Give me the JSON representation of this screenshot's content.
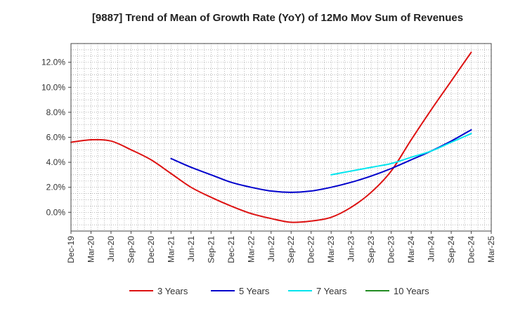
{
  "chart_data": {
    "type": "line",
    "title": "[9887]  Trend of Mean of Growth Rate (YoY) of 12Mo Mov Sum of Revenues",
    "xlabel": "",
    "ylabel": "",
    "ylim": [
      -1.5,
      13.5
    ],
    "yticks": [
      0.0,
      2.0,
      4.0,
      6.0,
      8.0,
      10.0,
      12.0
    ],
    "ytick_labels": [
      "0.0%",
      "2.0%",
      "4.0%",
      "6.0%",
      "8.0%",
      "10.0%",
      "12.0%"
    ],
    "categories": [
      "Dec-19",
      "Mar-20",
      "Jun-20",
      "Sep-20",
      "Dec-20",
      "Mar-21",
      "Jun-21",
      "Sep-21",
      "Dec-21",
      "Mar-22",
      "Jun-22",
      "Sep-22",
      "Dec-22",
      "Mar-23",
      "Jun-23",
      "Sep-23",
      "Dec-23",
      "Mar-24",
      "Jun-24",
      "Sep-24",
      "Dec-24",
      "Mar-25"
    ],
    "grid": true,
    "legend_position": "bottom",
    "series": [
      {
        "name": "3 Years",
        "color": "#dd1111",
        "values": [
          5.6,
          5.8,
          5.7,
          5.0,
          4.2,
          3.1,
          2.0,
          1.2,
          0.5,
          -0.1,
          -0.5,
          -0.8,
          -0.7,
          -0.4,
          0.4,
          1.6,
          3.3,
          5.8,
          8.2,
          10.5,
          12.8,
          null
        ]
      },
      {
        "name": "5 Years",
        "color": "#0000cc",
        "values": [
          null,
          null,
          null,
          null,
          null,
          4.3,
          3.6,
          3.0,
          2.4,
          2.0,
          1.7,
          1.6,
          1.7,
          2.0,
          2.4,
          2.9,
          3.5,
          4.2,
          4.9,
          5.7,
          6.6,
          null
        ]
      },
      {
        "name": "7 Years",
        "color": "#00e5ee",
        "values": [
          null,
          null,
          null,
          null,
          null,
          null,
          null,
          null,
          null,
          null,
          null,
          null,
          null,
          3.0,
          3.3,
          3.6,
          3.9,
          4.4,
          4.9,
          5.6,
          6.3,
          null
        ]
      },
      {
        "name": "10 Years",
        "color": "#228b22",
        "values": [
          null,
          null,
          null,
          null,
          null,
          null,
          null,
          null,
          null,
          null,
          null,
          null,
          null,
          null,
          null,
          null,
          null,
          null,
          null,
          null,
          null,
          null
        ]
      }
    ]
  }
}
